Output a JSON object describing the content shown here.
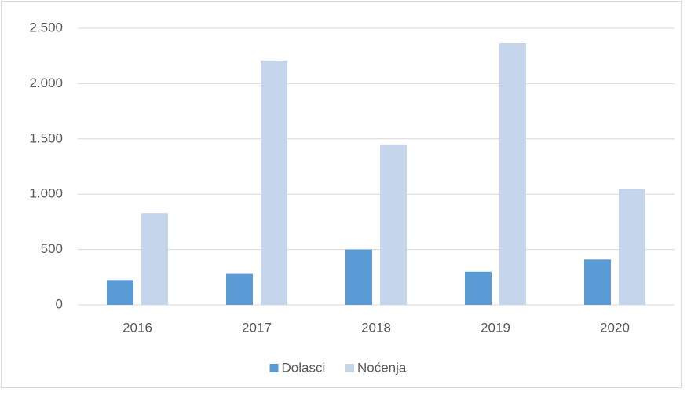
{
  "chart_data": {
    "type": "bar",
    "categories": [
      "2016",
      "2017",
      "2018",
      "2019",
      "2020"
    ],
    "series": [
      {
        "name": "Dolasci",
        "color": "#5b9bd5",
        "values": [
          225,
          280,
          500,
          300,
          410
        ]
      },
      {
        "name": "Noćenja",
        "color": "#c5d5ea",
        "values": [
          830,
          2210,
          1450,
          2365,
          1050
        ]
      }
    ],
    "ylim": [
      0,
      2500
    ],
    "yticks": [
      0,
      500,
      {
        "value": 1000,
        "label": "1.000"
      },
      {
        "value": 1500,
        "label": "1.500"
      },
      {
        "value": 2000,
        "label": "2.000"
      },
      {
        "value": 2500,
        "label": "2.500"
      }
    ],
    "grid": true,
    "legend": "bottom"
  }
}
